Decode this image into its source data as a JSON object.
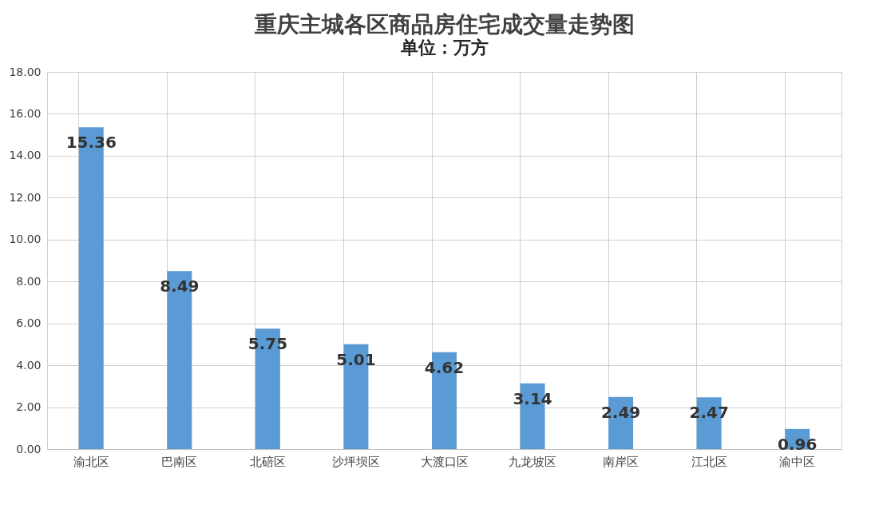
{
  "chart_data": {
    "type": "bar",
    "title": "重庆主城各区商品房住宅成交量走势图",
    "subtitle": "单位：万方",
    "categories": [
      "渝北区",
      "巴南区",
      "北碚区",
      "沙坪坝区",
      "大渡口区",
      "九龙坡区",
      "南岸区",
      "江北区",
      "渝中区"
    ],
    "values": [
      15.36,
      8.49,
      5.75,
      5.01,
      4.62,
      3.14,
      2.49,
      2.47,
      0.96
    ],
    "color": "#5b9bd5",
    "ylim": [
      0,
      18
    ],
    "yticks": [
      {
        "value": 0,
        "label": "0.00"
      },
      {
        "value": 2,
        "label": "2.00"
      },
      {
        "value": 4,
        "label": "4.00"
      },
      {
        "value": 6,
        "label": "6.00"
      },
      {
        "value": 8,
        "label": "8.00"
      },
      {
        "value": 10,
        "label": "10.00"
      },
      {
        "value": 12,
        "label": "12.00"
      },
      {
        "value": 14,
        "label": "14.00"
      },
      {
        "value": 16,
        "label": "16.00"
      },
      {
        "value": 18,
        "label": "18.00"
      }
    ],
    "grid": true,
    "data_labels": true
  }
}
